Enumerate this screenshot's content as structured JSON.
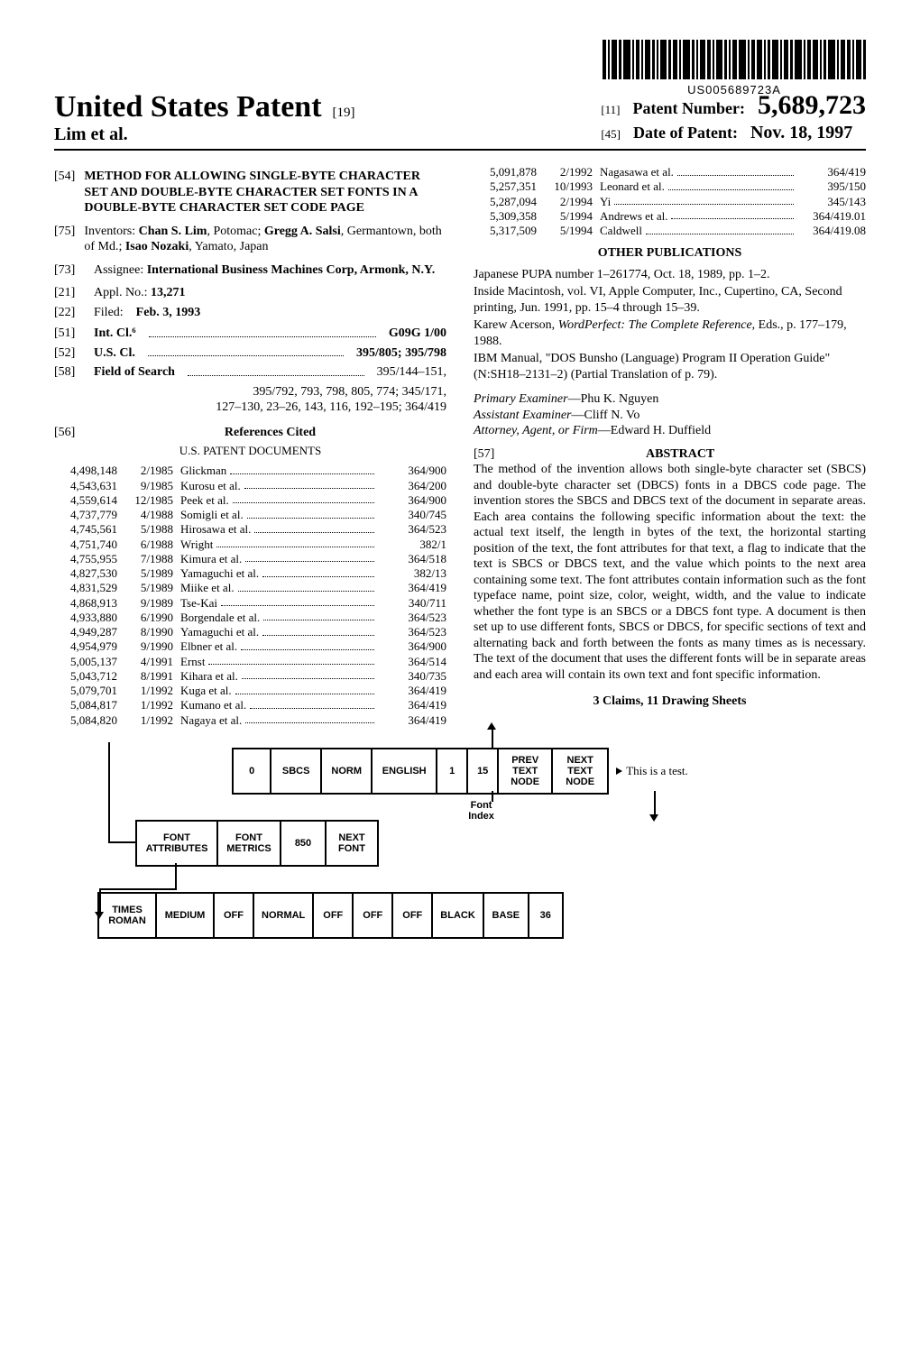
{
  "barcode_text": "US005689723A",
  "header": {
    "usp": "United States Patent",
    "usp_num": "[19]",
    "authors": "Lim et al.",
    "pn_bracket": "[11]",
    "pn_label": "Patent Number:",
    "pn_value": "5,689,723",
    "dop_bracket": "[45]",
    "dop_label": "Date of Patent:",
    "dop_value": "Nov. 18, 1997"
  },
  "left": {
    "b54": "[54]",
    "title": "METHOD FOR ALLOWING SINGLE-BYTE CHARACTER SET AND DOUBLE-BYTE CHARACTER SET FONTS IN A DOUBLE-BYTE CHARACTER SET CODE PAGE",
    "b75": "[75]",
    "inventors_label": "Inventors:",
    "inventors": "Chan S. Lim, Potomac; Gregg A. Salsi, Germantown, both of Md.; Isao Nozaki, Yamato, Japan",
    "b73": "[73]",
    "assignee_label": "Assignee:",
    "assignee": "International Business Machines Corp, Armonk, N.Y.",
    "b21": "[21]",
    "appl_label": "Appl. No.:",
    "appl": "13,271",
    "b22": "[22]",
    "filed_label": "Filed:",
    "filed": "Feb. 3, 1993",
    "b51": "[51]",
    "intcl_label": "Int. Cl.⁶",
    "intcl": "G09G 1/00",
    "b52": "[52]",
    "uscl_label": "U.S. Cl.",
    "uscl": "395/805; 395/798",
    "b58": "[58]",
    "fos_label": "Field of Search",
    "fos": "395/144–151, 395/792, 793, 798, 805, 774; 345/171, 127–130, 23–26, 143, 116, 192–195; 364/419",
    "b56": "[56]",
    "refs_head": "References Cited",
    "refs_sub": "U.S. PATENT DOCUMENTS",
    "refs": [
      {
        "pn": "4,498,148",
        "dt": "2/1985",
        "nm": "Glickman",
        "cl": "364/900"
      },
      {
        "pn": "4,543,631",
        "dt": "9/1985",
        "nm": "Kurosu et al.",
        "cl": "364/200"
      },
      {
        "pn": "4,559,614",
        "dt": "12/1985",
        "nm": "Peek et al.",
        "cl": "364/900"
      },
      {
        "pn": "4,737,779",
        "dt": "4/1988",
        "nm": "Somigli et al.",
        "cl": "340/745"
      },
      {
        "pn": "4,745,561",
        "dt": "5/1988",
        "nm": "Hirosawa et al.",
        "cl": "364/523"
      },
      {
        "pn": "4,751,740",
        "dt": "6/1988",
        "nm": "Wright",
        "cl": "382/1"
      },
      {
        "pn": "4,755,955",
        "dt": "7/1988",
        "nm": "Kimura et al.",
        "cl": "364/518"
      },
      {
        "pn": "4,827,530",
        "dt": "5/1989",
        "nm": "Yamaguchi et al.",
        "cl": "382/13"
      },
      {
        "pn": "4,831,529",
        "dt": "5/1989",
        "nm": "Miike et al.",
        "cl": "364/419"
      },
      {
        "pn": "4,868,913",
        "dt": "9/1989",
        "nm": "Tse-Kai",
        "cl": "340/711"
      },
      {
        "pn": "4,933,880",
        "dt": "6/1990",
        "nm": "Borgendale et al.",
        "cl": "364/523"
      },
      {
        "pn": "4,949,287",
        "dt": "8/1990",
        "nm": "Yamaguchi et al.",
        "cl": "364/523"
      },
      {
        "pn": "4,954,979",
        "dt": "9/1990",
        "nm": "Elbner et al.",
        "cl": "364/900"
      },
      {
        "pn": "5,005,137",
        "dt": "4/1991",
        "nm": "Ernst",
        "cl": "364/514"
      },
      {
        "pn": "5,043,712",
        "dt": "8/1991",
        "nm": "Kihara et al.",
        "cl": "340/735"
      },
      {
        "pn": "5,079,701",
        "dt": "1/1992",
        "nm": "Kuga et al.",
        "cl": "364/419"
      },
      {
        "pn": "5,084,817",
        "dt": "1/1992",
        "nm": "Kumano et al.",
        "cl": "364/419"
      },
      {
        "pn": "5,084,820",
        "dt": "1/1992",
        "nm": "Nagaya et al.",
        "cl": "364/419"
      }
    ]
  },
  "right": {
    "refs2": [
      {
        "pn": "5,091,878",
        "dt": "2/1992",
        "nm": "Nagasawa et al.",
        "cl": "364/419"
      },
      {
        "pn": "5,257,351",
        "dt": "10/1993",
        "nm": "Leonard et al.",
        "cl": "395/150"
      },
      {
        "pn": "5,287,094",
        "dt": "2/1994",
        "nm": "Yi",
        "cl": "345/143"
      },
      {
        "pn": "5,309,358",
        "dt": "5/1994",
        "nm": "Andrews et al.",
        "cl": "364/419.01"
      },
      {
        "pn": "5,317,509",
        "dt": "5/1994",
        "nm": "Caldwell",
        "cl": "364/419.08"
      }
    ],
    "other_head": "OTHER PUBLICATIONS",
    "other": [
      "Japanese PUPA number 1–261774, Oct. 18, 1989, pp. 1–2.",
      "Inside Macintosh, vol. VI, Apple Computer, Inc., Cupertino, CA, Second printing, Jun. 1991, pp. 15–4 through 15–39.",
      "Karew Acerson, WordPerfect: The Complete Reference, Eds., p. 177–179, 1988.",
      "IBM Manual, \"DOS Bunsho (Language) Program II Operation Guide\" (N:SH18–2131–2) (Partial Translation of p. 79)."
    ],
    "pe_label": "Primary Examiner",
    "pe": "—Phu K. Nguyen",
    "ae_label": "Assistant Examiner",
    "ae": "—Cliff N. Vo",
    "att_label": "Attorney, Agent, or Firm",
    "att": "—Edward H. Duffield",
    "b57": "[57]",
    "abs_head": "ABSTRACT",
    "abstract": "The method of the invention allows both single-byte character set (SBCS) and double-byte character set (DBCS) fonts in a DBCS code page. The invention stores the SBCS and DBCS text of the document in separate areas. Each area contains the following specific information about the text: the actual text itself, the length in bytes of the text, the horizontal starting position of the text, the font attributes for that text, a flag to indicate that the text is SBCS or DBCS text, and the value which points to the next area containing some text. The font attributes contain information such as the font typeface name, point size, color, weight, width, and the value to indicate whether the font type is an SBCS or a DBCS font type. A document is then set up to use different fonts, SBCS or DBCS, for specific sections of text and alternating back and forth between the fonts as many times as is necessary. The text of the document that uses the different fonts will be in separate areas and each area will contain its own text and font specific information.",
    "claims": "3 Claims, 11 Drawing Sheets"
  },
  "diagram": {
    "row1": [
      "0",
      "SBCS",
      "NORM",
      "ENGLISH",
      "1",
      "15",
      "PREV\nTEXT\nNODE",
      "NEXT\nTEXT\nNODE"
    ],
    "row1_attached": "This is a test.",
    "row1_label": "Font\nIndex",
    "row2": [
      "FONT\nATTRIBUTES",
      "FONT\nMETRICS",
      "850",
      "NEXT\nFONT"
    ],
    "row3": [
      "TIMES\nROMAN",
      "MEDIUM",
      "OFF",
      "NORMAL",
      "OFF",
      "OFF",
      "OFF",
      "BLACK",
      "BASE",
      "36"
    ]
  }
}
